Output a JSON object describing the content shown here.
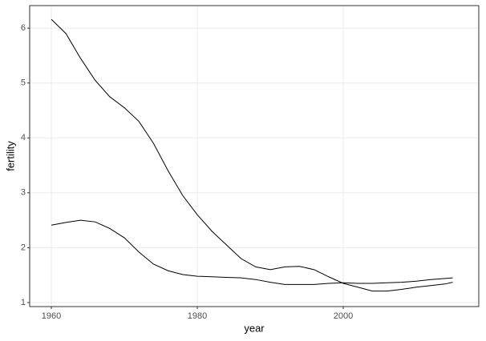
{
  "chart_data": {
    "type": "line",
    "x_label": "year",
    "y_label": "fertility",
    "x": [
      1960,
      1962,
      1964,
      1966,
      1968,
      1970,
      1972,
      1974,
      1976,
      1978,
      1980,
      1982,
      1984,
      1986,
      1988,
      1990,
      1992,
      1994,
      1996,
      1998,
      2000,
      2002,
      2004,
      2006,
      2008,
      2010,
      2012,
      2014,
      2015
    ],
    "series": [
      {
        "color": "#000000",
        "values": [
          6.16,
          5.9,
          5.45,
          5.05,
          4.75,
          4.55,
          4.3,
          3.9,
          3.4,
          2.95,
          2.6,
          2.3,
          2.05,
          1.8,
          1.65,
          1.6,
          1.65,
          1.66,
          1.6,
          1.47,
          1.35,
          1.28,
          1.21,
          1.21,
          1.24,
          1.28,
          1.31,
          1.34,
          1.37
        ]
      },
      {
        "color": "#000000",
        "values": [
          2.41,
          2.46,
          2.5,
          2.47,
          2.35,
          2.18,
          1.92,
          1.7,
          1.58,
          1.51,
          1.48,
          1.47,
          1.46,
          1.45,
          1.42,
          1.37,
          1.33,
          1.33,
          1.33,
          1.35,
          1.36,
          1.35,
          1.35,
          1.36,
          1.37,
          1.39,
          1.42,
          1.44,
          1.45
        ]
      }
    ],
    "xlim": [
      1957.03,
      2018.57
    ],
    "xticks": [
      1960,
      1980,
      2000
    ],
    "ylim": [
      0.927,
      6.41
    ],
    "yticks": [
      1,
      2,
      3,
      4,
      5,
      6
    ],
    "grid": true
  }
}
